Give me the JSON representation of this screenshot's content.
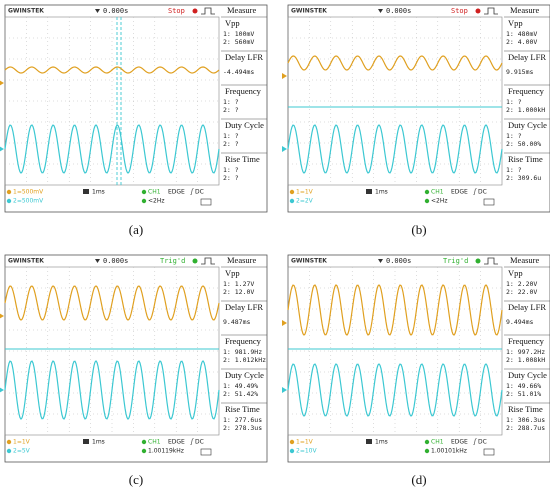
{
  "panels": [
    {
      "label": "(a)",
      "brand": "GWINSTEK",
      "time": "0.000s",
      "status": "Stop",
      "measure": "Measure",
      "items": [
        {
          "title": "Vpp",
          "lines": [
            "1: 100mV",
            "2: 560mV"
          ]
        },
        {
          "title": "Delay LFR",
          "lines": [
            "-4.494ms"
          ]
        },
        {
          "title": "Frequency",
          "lines": [
            "1:    ?",
            "2:    ?"
          ]
        },
        {
          "title": "Duty Cycle",
          "lines": [
            "1:    ?",
            "2:    ?"
          ]
        },
        {
          "title": "Rise Time",
          "lines": [
            "1:    ?",
            "2:    ?"
          ]
        }
      ],
      "ch1": "1=500mV",
      "ch2": "2=500mV",
      "timebase": "1ms",
      "trig_source": "CH1",
      "trig_type": "EDGE",
      "coupling": "DC",
      "trig_freq": "<2Hz"
    },
    {
      "label": "(b)",
      "brand": "GWINSTEK",
      "time": "0.000s",
      "status": "Stop",
      "measure": "Measure",
      "items": [
        {
          "title": "Vpp",
          "lines": [
            "1: 480mV",
            "2: 4.00V"
          ]
        },
        {
          "title": "Delay LFR",
          "lines": [
            "9.915ms"
          ]
        },
        {
          "title": "Frequency",
          "lines": [
            "1:    ?",
            "2: 1.000kH"
          ]
        },
        {
          "title": "Duty Cycle",
          "lines": [
            "1:    ?",
            "2: 50.00%"
          ]
        },
        {
          "title": "Rise Time",
          "lines": [
            "1:    ?",
            "2: 309.6u"
          ]
        }
      ],
      "ch1": "1=1V",
      "ch2": "2=2V",
      "timebase": "1ms",
      "trig_source": "CH1",
      "trig_type": "EDGE",
      "coupling": "DC",
      "trig_freq": "<2Hz"
    },
    {
      "label": "(c)",
      "brand": "GWINSTEK",
      "time": "0.000s",
      "status": "Trig'd",
      "measure": "Measure",
      "items": [
        {
          "title": "Vpp",
          "lines": [
            "1: 1.27V",
            "2: 12.0V"
          ]
        },
        {
          "title": "Delay LFR",
          "lines": [
            "9.487ms"
          ]
        },
        {
          "title": "Frequency",
          "lines": [
            "1: 981.9Hz",
            "2: 1.012kHz"
          ]
        },
        {
          "title": "Duty Cycle",
          "lines": [
            "1: 49.49%",
            "2: 51.42%"
          ]
        },
        {
          "title": "Rise Time",
          "lines": [
            "1: 277.6us",
            "2: 278.3us"
          ]
        }
      ],
      "ch1": "1=1V",
      "ch2": "2=5V",
      "timebase": "1ms",
      "trig_source": "CH1",
      "trig_type": "EDGE",
      "coupling": "DC",
      "trig_freq": "1.00119kHz"
    },
    {
      "label": "(d)",
      "brand": "GWINSTEK",
      "time": "0.000s",
      "status": "Trig'd",
      "measure": "Measure",
      "items": [
        {
          "title": "Vpp",
          "lines": [
            "1: 2.20V",
            "2: 22.0V"
          ]
        },
        {
          "title": "Delay LFR",
          "lines": [
            "9.494ms"
          ]
        },
        {
          "title": "Frequency",
          "lines": [
            "1: 997.2Hz",
            "2: 1.008kH"
          ]
        },
        {
          "title": "Duty Cycle",
          "lines": [
            "1: 49.66%",
            "2: 51.01%"
          ]
        },
        {
          "title": "Rise Time",
          "lines": [
            "1: 306.3us",
            "2: 288.7us"
          ]
        }
      ],
      "ch1": "1=1V",
      "ch2": "2=10V",
      "timebase": "1ms",
      "trig_source": "CH1",
      "trig_type": "EDGE",
      "coupling": "DC",
      "trig_freq": "1.00101kHz"
    }
  ]
}
